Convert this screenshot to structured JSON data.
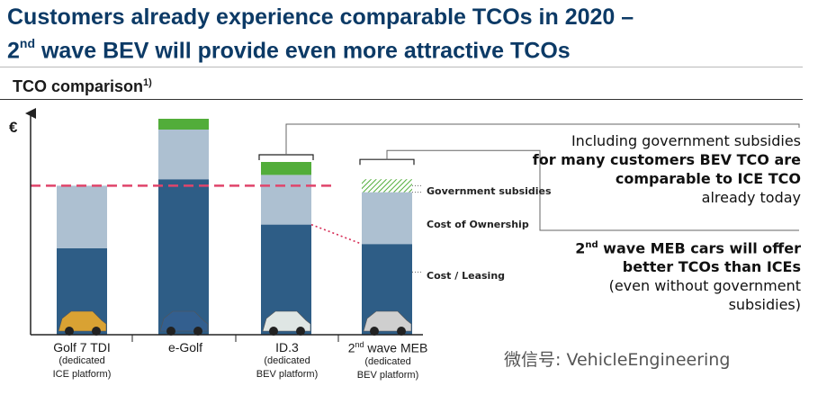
{
  "header": {
    "title_line1": "Customers already experience comparable TCOs in 2020 –",
    "title_line2_pre": "2",
    "title_line2_sup": "nd",
    "title_line2_post": " wave BEV will provide even more attractive TCOs"
  },
  "chart_header": {
    "label": "TCO comparison",
    "sup": "1)"
  },
  "chart_data": {
    "type": "bar",
    "ylabel": "€",
    "ylim": [
      0,
      100
    ],
    "categories": [
      "Golf 7 TDI",
      "e-Golf",
      "ID.3",
      "2nd wave MEB"
    ],
    "category_notes": [
      "(dedicated ICE platform)",
      "",
      "(dedicated BEV platform)",
      "(dedicated BEV platform)"
    ],
    "series": [
      {
        "name": "Cost / Leasing",
        "values": [
          40,
          72,
          51,
          42
        ]
      },
      {
        "name": "Cost of Ownership",
        "values": [
          29,
          23,
          23,
          24
        ]
      },
      {
        "name": "Government subsidies",
        "values": [
          0,
          5,
          6,
          6
        ]
      }
    ],
    "ice_reference_line": 69,
    "colors": {
      "Cost / Leasing": "#2e5d86",
      "Cost of Ownership": "#adc0d1",
      "Government subsidies": "#52ad3a",
      "reference_line": "#e0456b"
    }
  },
  "segment_labels": {
    "subsidies": "Government subsidies",
    "ownership": "Cost of Ownership",
    "leasing": "Cost / Leasing"
  },
  "categories_display": {
    "c0": {
      "name": "Golf 7 TDI",
      "note1": "(dedicated",
      "note2": "ICE platform)"
    },
    "c1": {
      "name": "e-Golf"
    },
    "c2": {
      "name": "ID.3",
      "note1": "(dedicated",
      "note2": "BEV platform)"
    },
    "c3": {
      "name_pre": "2",
      "name_sup": "nd",
      "name_post": " wave MEB",
      "note1": "(dedicated",
      "note2": "BEV platform)"
    }
  },
  "callout1": {
    "l1": "Including government subsidies",
    "l2": "for many customers BEV TCO are",
    "l3": "comparable to ICE TCO",
    "l4": "already today"
  },
  "callout2": {
    "l1_pre": "2",
    "l1_sup": "nd",
    "l1_post": " wave MEB cars will offer",
    "l2": "better TCOs than ICEs",
    "l3": "(even without government",
    "l4": "subsidies)"
  },
  "watermark": "微信号: VehicleEngineering"
}
